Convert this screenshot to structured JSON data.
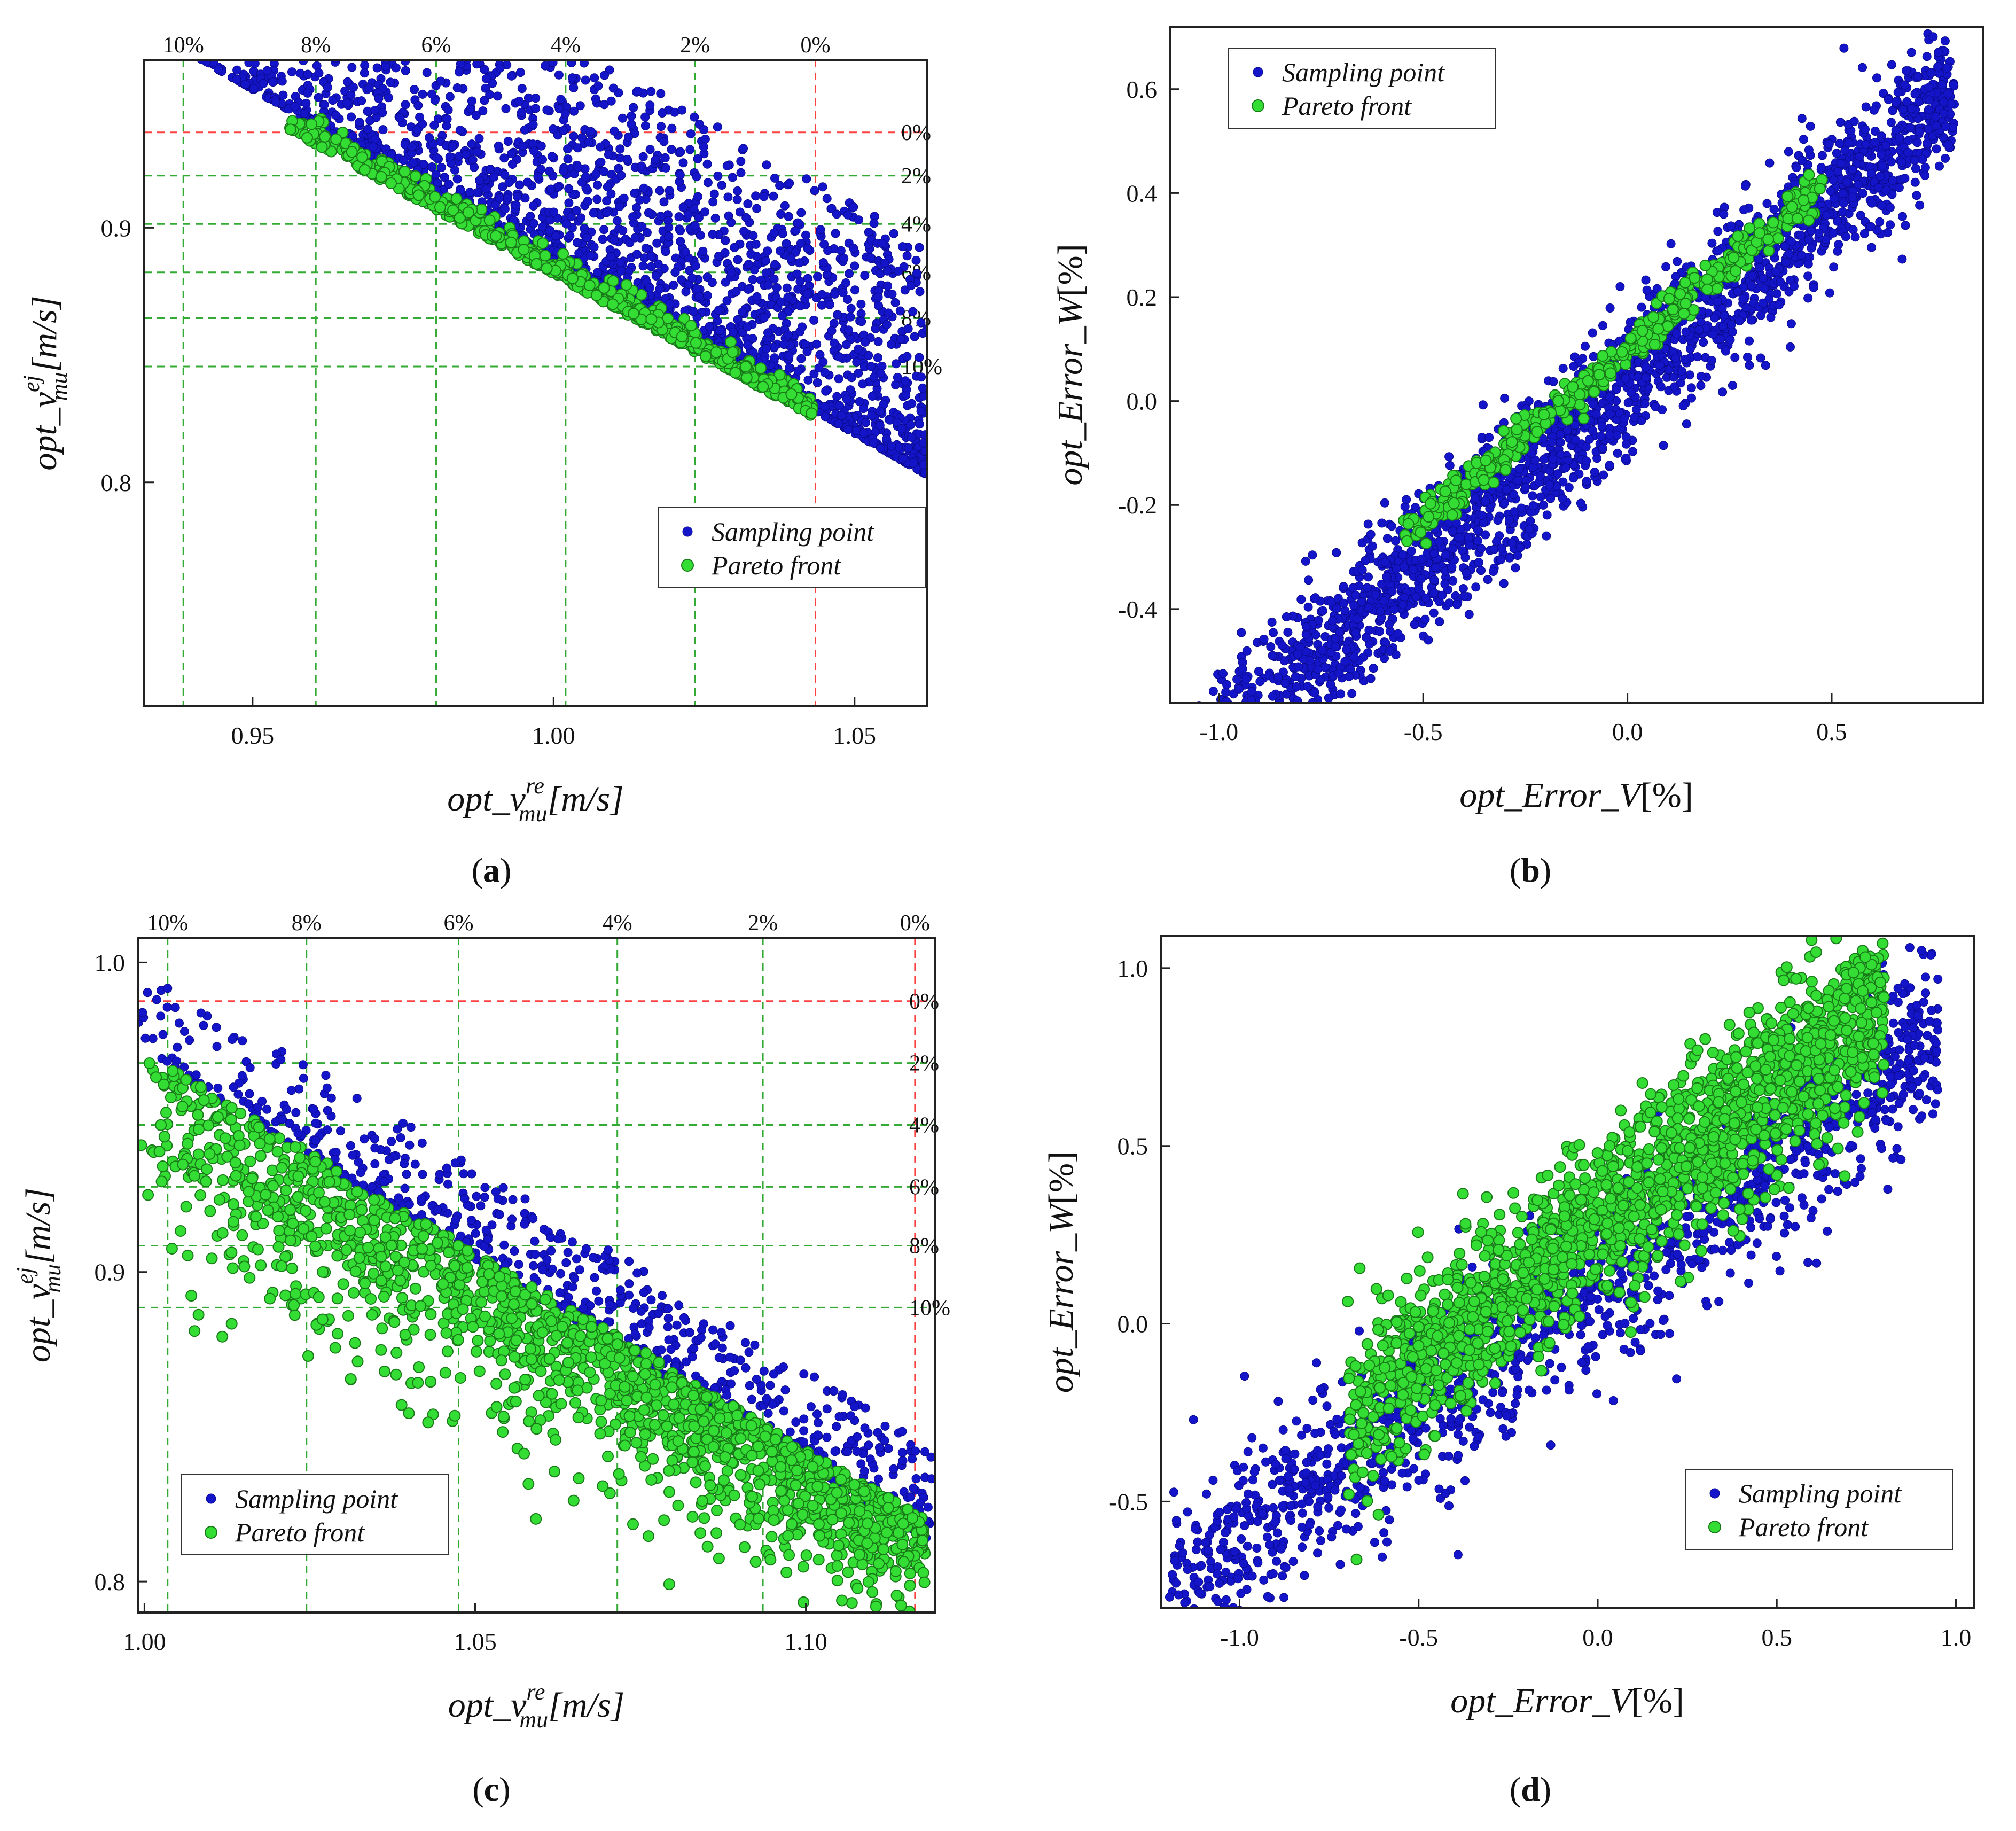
{
  "colors": {
    "sampling": "#1414c8",
    "sampling_stroke": "#0a0a8a",
    "pareto": "#33dd33",
    "pareto_stroke": "#1a7a1a",
    "ref_red": "#ff4040",
    "ref_green": "#33aa33"
  },
  "chart_data": [
    {
      "id": "a",
      "type": "scatter",
      "caption_letter": "a",
      "xlabel_prefix": "opt_v",
      "xlabel_sub": "mu",
      "xlabel_sup": "re",
      "xlabel_unit": "[m/s]",
      "ylabel_prefix": "opt_v",
      "ylabel_sub": "mu",
      "ylabel_sup": "ej",
      "ylabel_unit": "[m/s]",
      "xlim": [
        0.932,
        1.062
      ],
      "ylim": [
        0.712,
        0.966
      ],
      "xticks": [
        0.95,
        1.0,
        1.05
      ],
      "xtick_labels": [
        "0.95",
        "1.00",
        "1.05"
      ],
      "yticks": [
        0.8,
        0.9
      ],
      "ytick_labels": [
        "0.8",
        "0.9"
      ],
      "vref": [
        1.0435,
        1.0235,
        1.002,
        0.9805,
        0.9605,
        0.9385
      ],
      "vref_labels": [
        "0%",
        "2%",
        "4%",
        "6%",
        "8%",
        "10%"
      ],
      "href": [
        0.9375,
        0.9205,
        0.9015,
        0.8825,
        0.8645,
        0.8455
      ],
      "href_labels": [
        "0%",
        "2%",
        "4%",
        "6%",
        "8%",
        "10%"
      ],
      "legend": [
        "Sampling point",
        "Pareto front"
      ],
      "legend_loc": "lower-right",
      "series": [
        {
          "name": "Sampling point",
          "role": "sampling",
          "count": 2300,
          "model": "front_cloud",
          "x_range": [
            0.94,
            1.062
          ],
          "front_start": [
            0.94,
            0.968
          ],
          "front_end": [
            1.062,
            0.803
          ],
          "spread": 0.09,
          "seed": 11
        },
        {
          "name": "Pareto front",
          "role": "pareto",
          "count": 700,
          "model": "front_line",
          "x_range": [
            0.955,
            1.043
          ],
          "front_start": [
            0.955,
            0.94
          ],
          "front_end": [
            1.043,
            0.826
          ],
          "spread": 0.004,
          "seed": 12
        }
      ]
    },
    {
      "id": "b",
      "type": "scatter",
      "caption_letter": "b",
      "xlabel_prefix": "opt_Error_V",
      "xlabel_unit": "[%]",
      "ylabel_prefix": "opt_Error_W",
      "ylabel_unit": "[%]",
      "xlim": [
        -1.12,
        0.87
      ],
      "ylim": [
        -0.58,
        0.72
      ],
      "xticks": [
        -1.0,
        -0.5,
        0.0,
        0.5
      ],
      "xtick_labels": [
        "-1.0",
        "-0.5",
        "0.0",
        "0.5"
      ],
      "yticks": [
        -0.4,
        -0.2,
        0.0,
        0.2,
        0.4,
        0.6
      ],
      "ytick_labels": [
        "-0.4",
        "-0.2",
        "0.0",
        "0.2",
        "0.4",
        "0.6"
      ],
      "legend": [
        "Sampling point",
        "Pareto front"
      ],
      "legend_loc": "upper-left",
      "series": [
        {
          "name": "Sampling point",
          "role": "sampling",
          "count": 2300,
          "model": "band",
          "x_range": [
            -1.05,
            0.8
          ],
          "slope": 0.7,
          "intercept": 0.04,
          "spread": 0.07,
          "seed": 21
        },
        {
          "name": "Pareto front",
          "role": "pareto",
          "count": 450,
          "model": "band",
          "x_range": [
            -0.55,
            0.48
          ],
          "slope": 0.66,
          "intercept": 0.1,
          "spread": 0.018,
          "seed": 22
        }
      ]
    },
    {
      "id": "c",
      "type": "scatter",
      "caption_letter": "c",
      "xlabel_prefix": "opt_v",
      "xlabel_sub": "mu",
      "xlabel_sup": "re",
      "xlabel_unit": "[m/s]",
      "ylabel_prefix": "opt_v",
      "ylabel_sub": "mu",
      "ylabel_sup": "ej",
      "ylabel_unit": "[m/s]",
      "xlim": [
        0.999,
        1.1195
      ],
      "ylim": [
        0.79,
        1.008
      ],
      "xticks": [
        1.0,
        1.05,
        1.1
      ],
      "xtick_labels": [
        "1.00",
        "1.05",
        "1.10"
      ],
      "yticks": [
        0.8,
        0.9,
        1.0
      ],
      "ytick_labels": [
        "0.8",
        "0.9",
        "1.0"
      ],
      "vref": [
        1.1165,
        1.0935,
        1.0715,
        1.0475,
        1.0245,
        1.0035
      ],
      "vref_labels": [
        "0%",
        "2%",
        "4%",
        "6%",
        "8%",
        "10%"
      ],
      "href": [
        0.9875,
        0.9675,
        0.9475,
        0.9275,
        0.9085,
        0.8885
      ],
      "href_labels": [
        "0%",
        "2%",
        "4%",
        "6%",
        "8%",
        "10%"
      ],
      "legend": [
        "Sampling point",
        "Pareto front"
      ],
      "legend_loc": "lower-left",
      "series": [
        {
          "name": "Sampling point",
          "role": "sampling",
          "count": 850,
          "model": "front_cloud",
          "x_range": [
            0.999,
            1.119
          ],
          "front_start": [
            0.999,
            0.972
          ],
          "front_end": [
            1.119,
            0.813
          ],
          "spread": 0.03,
          "seed": 31
        },
        {
          "name": "Pareto front",
          "role": "pareto",
          "count": 1700,
          "model": "front_below",
          "x_range": [
            0.999,
            1.118
          ],
          "front_start": [
            0.999,
            0.972
          ],
          "front_end": [
            1.118,
            0.82
          ],
          "spread": 0.025,
          "seed": 32
        }
      ]
    },
    {
      "id": "d",
      "type": "scatter",
      "caption_letter": "d",
      "xlabel_prefix": "opt_Error_V",
      "xlabel_unit": "[%]",
      "ylabel_prefix": "opt_Error_W",
      "ylabel_unit": "[%]",
      "xlim": [
        -1.22,
        1.05
      ],
      "ylim": [
        -0.8,
        1.09
      ],
      "xticks": [
        -1.0,
        -0.5,
        0.0,
        0.5,
        1.0
      ],
      "xtick_labels": [
        "-1.0",
        "-0.5",
        "0.0",
        "0.5",
        "1.0"
      ],
      "yticks": [
        -0.5,
        0.0,
        0.5,
        1.0
      ],
      "ytick_labels": [
        "-0.5",
        "0.0",
        "0.5",
        "1.0"
      ],
      "legend": [
        "Sampling point",
        "Pareto front"
      ],
      "legend_loc": "lower-right",
      "series": [
        {
          "name": "Sampling point",
          "role": "sampling",
          "count": 1500,
          "model": "band",
          "x_range": [
            -1.2,
            0.95
          ],
          "slope": 0.72,
          "intercept": 0.12,
          "spread": 0.13,
          "seed": 41
        },
        {
          "name": "Pareto front",
          "role": "pareto",
          "count": 1700,
          "model": "band",
          "x_range": [
            -0.7,
            0.8
          ],
          "slope": 0.78,
          "intercept": 0.28,
          "spread": 0.12,
          "seed": 42
        }
      ]
    }
  ]
}
